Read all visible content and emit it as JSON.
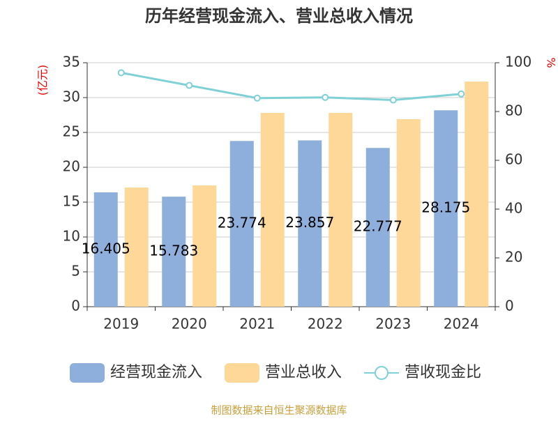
{
  "chart_data": {
    "type": "bar-line",
    "title": "历年经营现金流入、营业总收入情况",
    "categories": [
      "2019",
      "2020",
      "2021",
      "2022",
      "2023",
      "2024"
    ],
    "series": [
      {
        "name": "经营现金流入",
        "color": "#8eaedb",
        "values": [
          16.405,
          15.783,
          23.774,
          23.857,
          22.777,
          28.175
        ]
      },
      {
        "name": "营业总收入",
        "color": "#fdd899",
        "values": [
          17.1,
          17.4,
          27.8,
          27.8,
          26.9,
          32.3
        ]
      },
      {
        "name": "营收现金比",
        "color": "#7fd1d6",
        "axis": "y2",
        "values": [
          95.9,
          90.7,
          85.5,
          85.8,
          84.7,
          87.2
        ]
      }
    ],
    "ylabel": "(亿元)",
    "y2label": "%",
    "ylim": [
      0,
      35
    ],
    "yticks": [
      0,
      5,
      10,
      15,
      20,
      25,
      30,
      35
    ],
    "y2lim": [
      0,
      100
    ],
    "y2ticks": [
      0,
      20,
      40,
      60,
      80,
      100
    ],
    "grid": true,
    "source": "制图数据来自恒生聚源数据库"
  }
}
